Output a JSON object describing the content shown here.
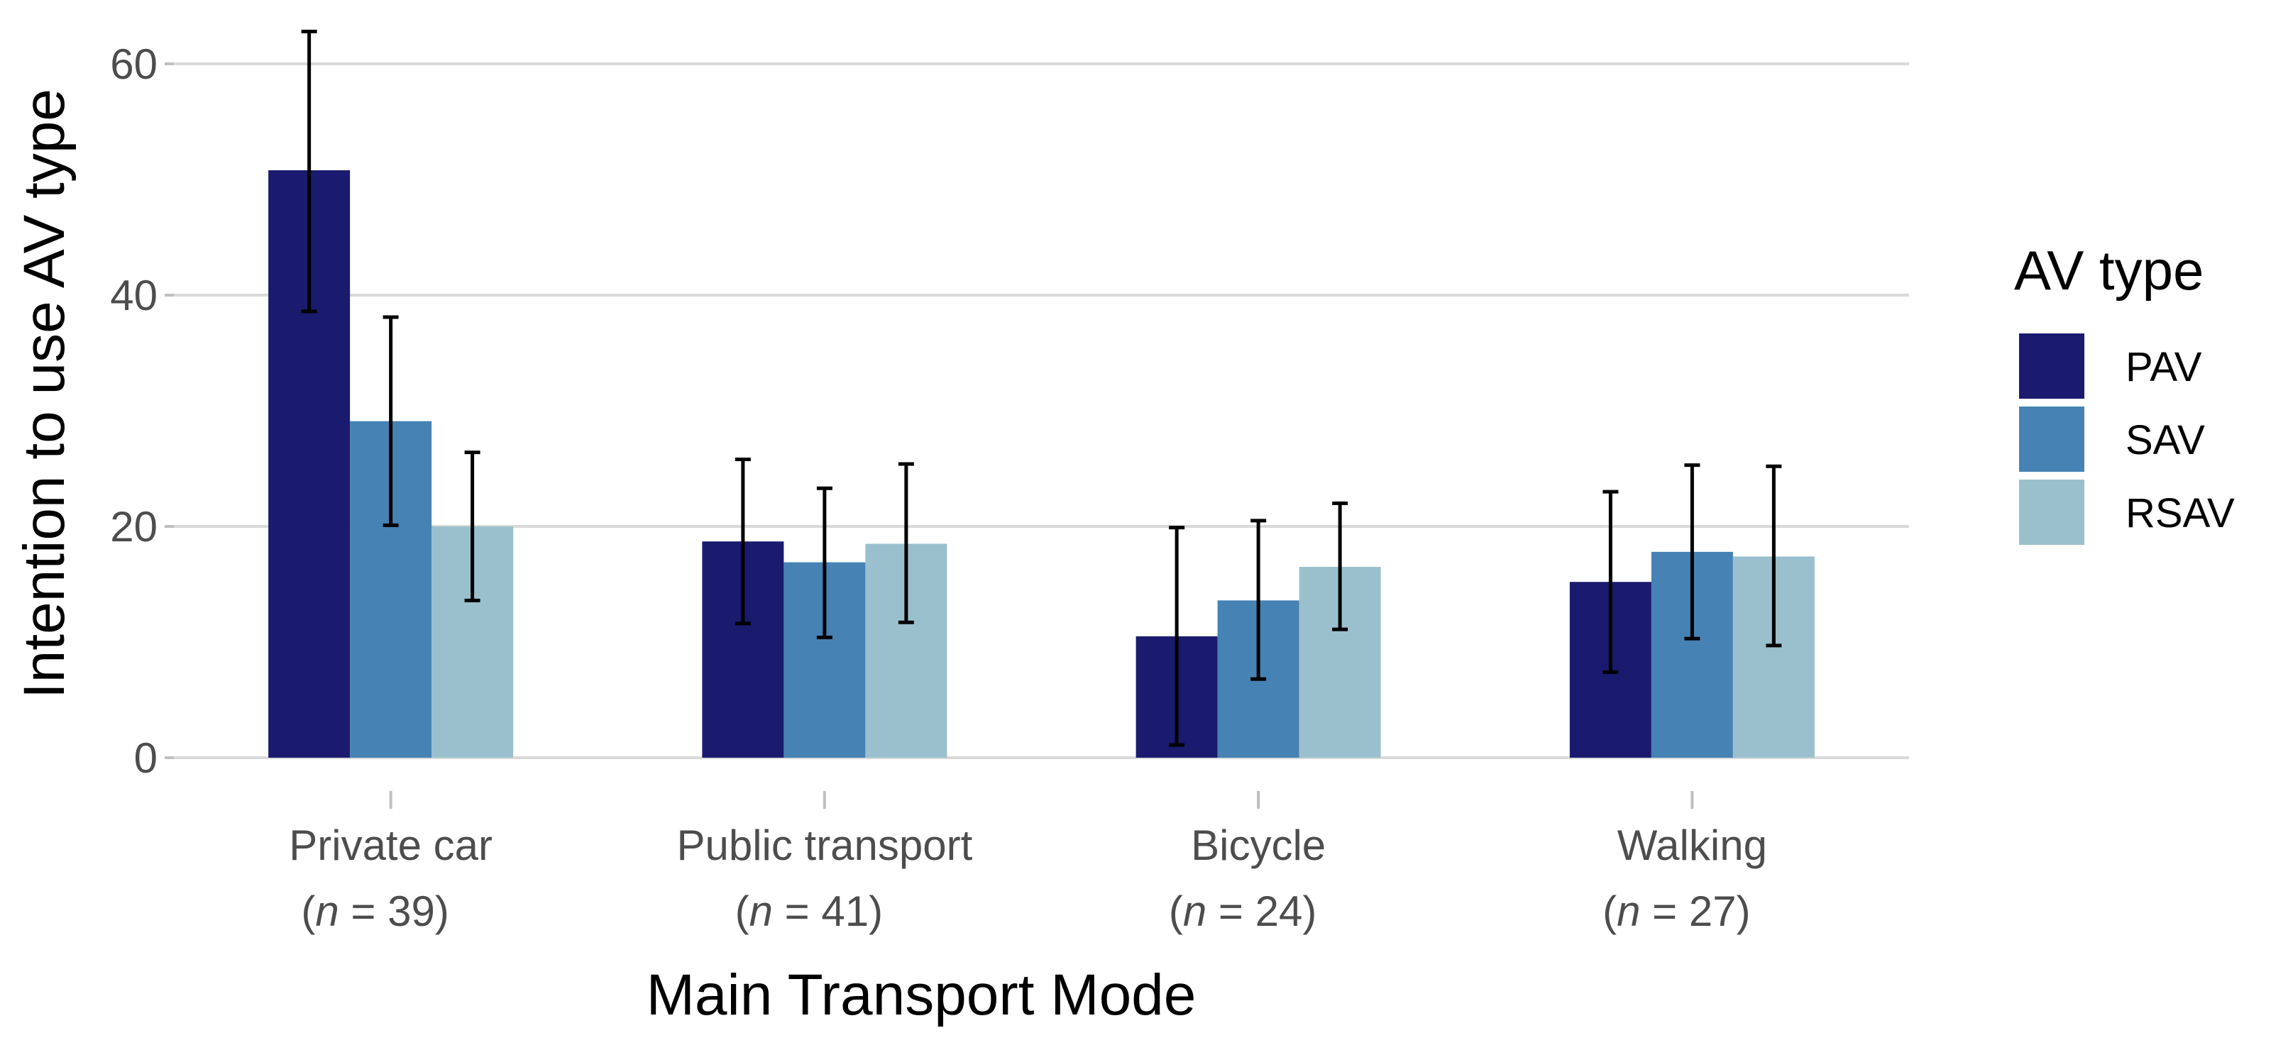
{
  "chart_data": {
    "type": "bar",
    "xlabel": "Main Transport Mode",
    "ylabel": "Intention to use AV type",
    "ylim": [
      0,
      60
    ],
    "yticks": [
      0,
      20,
      40,
      60
    ],
    "grid": "horizontal",
    "legend": {
      "title": "AV type",
      "position": "right"
    },
    "categories": [
      "Private car",
      "Public transport",
      "Bicycle",
      "Walking"
    ],
    "category_n": [
      {
        "italic": "n",
        "rest": " = 39)"
      },
      {
        "italic": "n",
        "rest": " = 41)"
      },
      {
        "italic": "n",
        "rest": " = 24)"
      },
      {
        "italic": "n",
        "rest": " = 27)"
      }
    ],
    "series": [
      {
        "name": "PAV",
        "color": "#1a1a6e",
        "values": [
          50.8,
          18.7,
          10.5,
          15.2
        ],
        "err_low": [
          38.6,
          11.6,
          1.1,
          7.4
        ],
        "err_high": [
          62.8,
          25.8,
          19.9,
          23.0
        ]
      },
      {
        "name": "SAV",
        "color": "#4682b4",
        "values": [
          29.1,
          16.9,
          13.6,
          17.8
        ],
        "err_low": [
          20.1,
          10.4,
          6.8,
          10.3
        ],
        "err_high": [
          38.1,
          23.3,
          20.5,
          25.3
        ]
      },
      {
        "name": "RSAV",
        "color": "#9ac0cd",
        "values": [
          20.0,
          18.5,
          16.5,
          17.4
        ],
        "err_low": [
          13.6,
          11.7,
          11.1,
          9.7
        ],
        "err_high": [
          26.4,
          25.4,
          22.0,
          25.2
        ]
      }
    ]
  }
}
